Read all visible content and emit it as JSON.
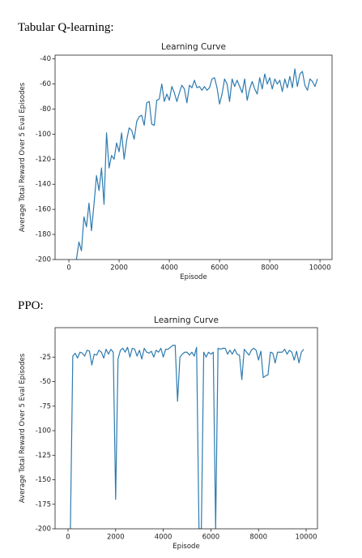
{
  "headings": [
    "Tabular Q-learning:",
    "PPO:"
  ],
  "chart_data": [
    {
      "type": "line",
      "title": "Learning Curve",
      "xlabel": "Episode",
      "ylabel": "Average Total Reward Over 5 Eval Episodes",
      "color": "#2e7bb0",
      "x": [
        300,
        400,
        500,
        600,
        700,
        800,
        900,
        1000,
        1100,
        1200,
        1300,
        1400,
        1500,
        1600,
        1700,
        1800,
        1900,
        2000,
        2100,
        2200,
        2300,
        2400,
        2500,
        2600,
        2700,
        2800,
        2900,
        3000,
        3100,
        3200,
        3300,
        3400,
        3500,
        3600,
        3700,
        3800,
        3900,
        4000,
        4100,
        4200,
        4300,
        4400,
        4500,
        4600,
        4700,
        4800,
        4900,
        5000,
        5100,
        5200,
        5300,
        5400,
        5500,
        5600,
        5700,
        5800,
        5900,
        6000,
        6100,
        6200,
        6300,
        6400,
        6500,
        6600,
        6700,
        6800,
        6900,
        7000,
        7100,
        7200,
        7300,
        7400,
        7500,
        7600,
        7700,
        7800,
        7900,
        8000,
        8100,
        8200,
        8300,
        8400,
        8500,
        8600,
        8700,
        8800,
        8900,
        9000,
        9100,
        9200,
        9300,
        9400,
        9500,
        9600,
        9700,
        9800,
        9900
      ],
      "values": [
        -200,
        -186,
        -193,
        -166,
        -174,
        -155,
        -177,
        -156,
        -133,
        -145,
        -127,
        -156,
        -99,
        -127,
        -117,
        -120,
        -107,
        -114,
        -99,
        -120,
        -105,
        -95,
        -97,
        -104,
        -90,
        -86,
        -85,
        -93,
        -75,
        -74,
        -92,
        -93,
        -73,
        -72,
        -60,
        -74,
        -68,
        -73,
        -62,
        -67,
        -74,
        -67,
        -61,
        -64,
        -75,
        -61,
        -63,
        -57,
        -63,
        -62,
        -65,
        -62,
        -65,
        -63,
        -56,
        -55,
        -63,
        -76,
        -68,
        -56,
        -60,
        -74,
        -56,
        -62,
        -57,
        -62,
        -67,
        -56,
        -73,
        -64,
        -58,
        -64,
        -68,
        -55,
        -64,
        -52,
        -60,
        -55,
        -64,
        -56,
        -60,
        -57,
        -66,
        -56,
        -63,
        -54,
        -63,
        -48,
        -62,
        -52,
        -50,
        -61,
        -65,
        -56,
        -58,
        -62,
        -56
      ],
      "xlim": [
        -550,
        10480
      ],
      "ylim": [
        -200,
        -37
      ],
      "xticks": [
        0,
        2000,
        4000,
        6000,
        8000,
        10000
      ],
      "yticks": [
        -200,
        -180,
        -160,
        -140,
        -120,
        -100,
        -80,
        -60,
        -40
      ]
    },
    {
      "type": "line",
      "title": "Learning Curve",
      "xlabel": "Episode",
      "ylabel": "Average Total Reward Over 5 Eval Episodes",
      "color": "#2e7bb0",
      "x": [
        100,
        200,
        300,
        400,
        500,
        600,
        700,
        800,
        900,
        1000,
        1100,
        1200,
        1300,
        1400,
        1500,
        1600,
        1700,
        1800,
        1900,
        2000,
        2100,
        2200,
        2300,
        2400,
        2500,
        2600,
        2700,
        2800,
        2900,
        3000,
        3100,
        3200,
        3300,
        3400,
        3500,
        3600,
        3700,
        3800,
        3900,
        4000,
        4100,
        4200,
        4300,
        4400,
        4500,
        4600,
        4700,
        4800,
        4900,
        5000,
        5100,
        5200,
        5300,
        5400,
        5500,
        5600,
        5700,
        5800,
        5900,
        6000,
        6100,
        6200,
        6300,
        6400,
        6500,
        6600,
        6700,
        6800,
        6900,
        7000,
        7100,
        7200,
        7300,
        7400,
        7500,
        7600,
        7700,
        7800,
        7900,
        8000,
        8100,
        8200,
        8300,
        8400,
        8500,
        8600,
        8700,
        8800,
        8900,
        9000,
        9100,
        9200,
        9300,
        9400,
        9500,
        9600,
        9700,
        9800,
        9900
      ],
      "values": [
        -200,
        -24,
        -21,
        -26,
        -20,
        -21,
        -24,
        -18,
        -19,
        -33,
        -22,
        -23,
        -18,
        -20,
        -26,
        -17,
        -22,
        -17,
        -20,
        -170,
        -27,
        -18,
        -16,
        -20,
        -15,
        -25,
        -16,
        -17,
        -24,
        -18,
        -27,
        -16,
        -20,
        -21,
        -19,
        -25,
        -18,
        -20,
        -16,
        -25,
        -17,
        -17,
        -15,
        -13,
        -13,
        -70,
        -25,
        -22,
        -20,
        -20,
        -23,
        -20,
        -24,
        -15,
        -200,
        -200,
        -20,
        -25,
        -20,
        -22,
        -20,
        -200,
        -16,
        -17,
        -16,
        -16,
        -22,
        -18,
        -22,
        -17,
        -22,
        -23,
        -48,
        -17,
        -20,
        -23,
        -18,
        -16,
        -18,
        -28,
        -19,
        -46,
        -44,
        -43,
        -20,
        -21,
        -31,
        -20,
        -20,
        -20,
        -17,
        -22,
        -18,
        -20,
        -28,
        -19,
        -31,
        -20,
        -17
      ],
      "xlim": [
        -544,
        10476
      ],
      "ylim": [
        -200,
        5
      ],
      "xticks": [
        0,
        2000,
        4000,
        6000,
        8000,
        10000
      ],
      "yticks": [
        -200,
        -175,
        -150,
        -125,
        -100,
        -75,
        -50,
        -25
      ]
    }
  ]
}
